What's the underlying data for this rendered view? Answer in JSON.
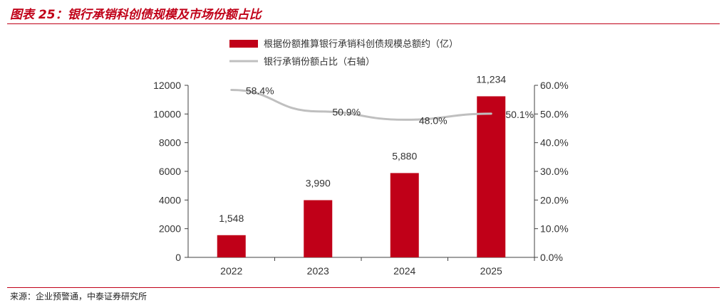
{
  "header": {
    "title": "图表 25：银行承销科创债规模及市场份额占比"
  },
  "footer": {
    "source": "来源：企业预警通，中泰证券研究所"
  },
  "colors": {
    "bar": "#c00018",
    "line": "#bfbfbf",
    "accent": "#c00018"
  },
  "chart_data": {
    "type": "bar",
    "categories": [
      "2022",
      "2023",
      "2024",
      "2025"
    ],
    "series": [
      {
        "name": "根据份额推算银行承销科创债规模总额约（亿）",
        "type": "bar",
        "axis": "left",
        "values": [
          1548,
          3990,
          5880,
          11234
        ],
        "labels": [
          "1,548",
          "3,990",
          "5,880",
          "11,234"
        ]
      },
      {
        "name": "银行承销份额占比（右轴）",
        "type": "line",
        "axis": "right",
        "values": [
          58.4,
          50.9,
          48.0,
          50.1
        ],
        "labels": [
          "58.4%",
          "50.9%",
          "48.0%",
          "50.1%"
        ]
      }
    ],
    "yleft": {
      "range": [
        0,
        12000
      ],
      "ticks": [
        "0",
        "2000",
        "4000",
        "6000",
        "8000",
        "10000",
        "12000"
      ]
    },
    "yright": {
      "range": [
        0,
        60
      ],
      "ticks": [
        "0.0%",
        "10.0%",
        "20.0%",
        "30.0%",
        "40.0%",
        "50.0%",
        "60.0%"
      ]
    },
    "grid": false,
    "legend": "top"
  }
}
